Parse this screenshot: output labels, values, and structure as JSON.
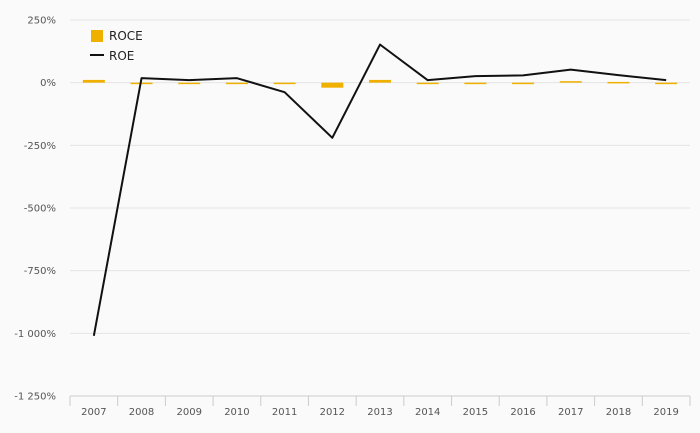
{
  "chart_data": {
    "type": "bar",
    "categories": [
      "2007",
      "2008",
      "2009",
      "2010",
      "2011",
      "2012",
      "2013",
      "2014",
      "2015",
      "2016",
      "2017",
      "2018",
      "2019"
    ],
    "series": [
      {
        "name": "ROCE",
        "type": "bar",
        "color": "#f0b000",
        "values": [
          11,
          -3,
          -2,
          -3,
          -4,
          -20,
          11,
          -3,
          -2,
          -2,
          6,
          3,
          -2
        ]
      },
      {
        "name": "ROE",
        "type": "line",
        "color": "#111111",
        "values": [
          -1010,
          18,
          10,
          18,
          -38,
          -220,
          152,
          10,
          26,
          29,
          52,
          30,
          10
        ]
      }
    ],
    "y_ticks": [
      250,
      0,
      -250,
      -500,
      -750,
      -1000,
      -1250
    ],
    "y_tick_labels": [
      "250%",
      "0%",
      "-250%",
      "-500%",
      "-750%",
      "-1 000%",
      "-1 250%"
    ],
    "ylim": [
      -1250,
      250
    ],
    "grid": true,
    "legend_position": "top-left"
  }
}
